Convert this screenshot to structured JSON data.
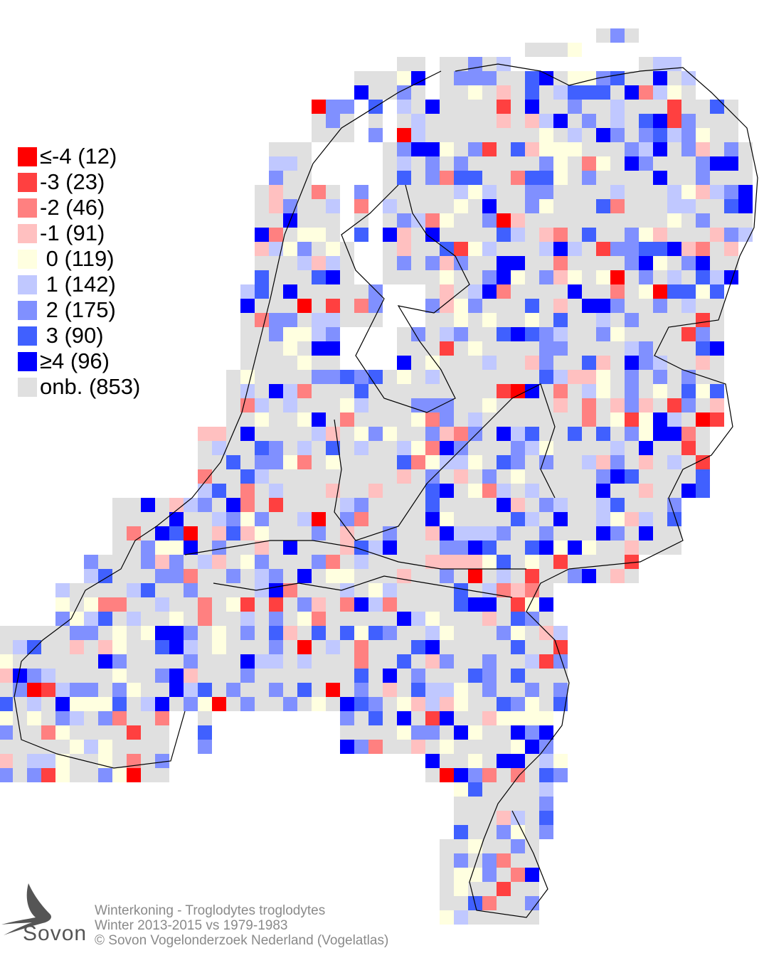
{
  "legend": {
    "items": [
      {
        "label": "≤-4 (12)",
        "color": "#ff0000"
      },
      {
        "label": "-3 (23)",
        "color": "#ff4040"
      },
      {
        "label": "-2 (46)",
        "color": "#ff8080"
      },
      {
        "label": "-1 (91)",
        "color": "#ffc0c0"
      },
      {
        "label": " 0 (119)",
        "color": "#ffffe0"
      },
      {
        "label": " 1 (142)",
        "color": "#c0c8ff"
      },
      {
        "label": " 2 (175)",
        "color": "#8090ff"
      },
      {
        "label": " 3 (90)",
        "color": "#4060ff"
      },
      {
        "label": "≥4 (96)",
        "color": "#0000ff"
      },
      {
        "label": "onb. (853)",
        "color": "#e0e0e0"
      }
    ]
  },
  "footer": {
    "line1": "Winterkoning - Troglodytes troglodytes",
    "line2": "Winter 2013-2015 vs 1979-1983",
    "line3": "© Sovon Vogelonderzoek Nederland (Vogelatlas)"
  },
  "logo": {
    "text": "Sovon"
  }
}
